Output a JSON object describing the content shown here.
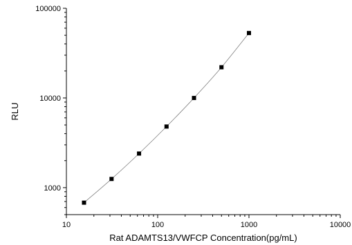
{
  "chart_data": {
    "type": "scatter",
    "xlabel": "Rat ADAMTS13/VWFCP Concentration(pg/mL)",
    "ylabel": "RLU",
    "x_scale": "log",
    "y_scale": "log",
    "xlim": [
      10,
      10000
    ],
    "ylim": [
      500,
      100000
    ],
    "x_ticks": [
      "10",
      "100",
      "1000",
      "10000"
    ],
    "y_ticks": [
      "1000",
      "10000",
      "100000"
    ],
    "grid": false,
    "series": [
      {
        "x": [
          15.6,
          31.25,
          62.5,
          125,
          250,
          500,
          1000
        ],
        "y": [
          680,
          1250,
          2400,
          4800,
          10000,
          22000,
          53000
        ]
      }
    ]
  }
}
